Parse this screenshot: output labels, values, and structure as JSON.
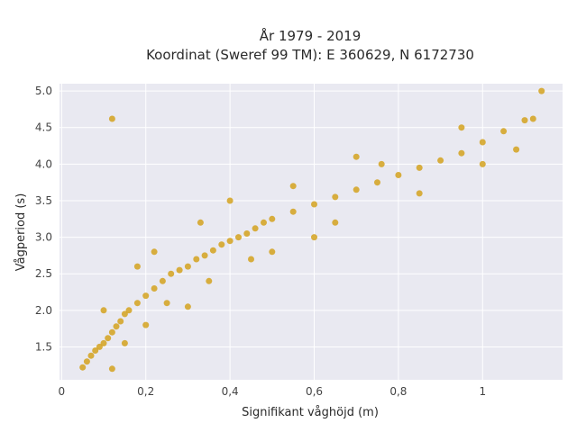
{
  "chart_data": {
    "type": "scatter",
    "title_line1": "År 1979 - 2019",
    "title_line2": "Koordinat (Sweref 99 TM): E 360629, N 6172730",
    "xlabel": "Signifikant våghöjd (m)",
    "ylabel": "Vågperiod (s)",
    "xlim": [
      -0.005,
      1.19
    ],
    "ylim": [
      1.05,
      5.1
    ],
    "x_ticks": [
      0,
      0.2,
      0.4,
      0.6,
      0.8,
      1.0
    ],
    "x_tick_labels": [
      "0",
      "0,2",
      "0,4",
      "0,6",
      "0,8",
      "1"
    ],
    "y_ticks": [
      1.5,
      2.0,
      2.5,
      3.0,
      3.5,
      4.0,
      4.5,
      5.0
    ],
    "y_tick_labels": [
      "1.5",
      "2.0",
      "2.5",
      "3.0",
      "3.5",
      "4.0",
      "4.5",
      "5.0"
    ],
    "grid": true,
    "colors": {
      "point": "#D4A21F",
      "plot_bg": "#E9E9F1",
      "grid": "#FFFFFF"
    },
    "series": [
      {
        "values": [
          [
            0.05,
            1.22
          ],
          [
            0.06,
            1.3
          ],
          [
            0.07,
            1.38
          ],
          [
            0.08,
            1.45
          ],
          [
            0.09,
            1.5
          ],
          [
            0.1,
            1.55
          ],
          [
            0.11,
            1.62
          ],
          [
            0.12,
            1.7
          ],
          [
            0.12,
            1.2
          ],
          [
            0.13,
            1.78
          ],
          [
            0.14,
            1.85
          ],
          [
            0.15,
            1.95
          ],
          [
            0.16,
            2.0
          ],
          [
            0.18,
            2.1
          ],
          [
            0.2,
            2.2
          ],
          [
            0.22,
            2.3
          ],
          [
            0.24,
            2.4
          ],
          [
            0.26,
            2.5
          ],
          [
            0.28,
            2.55
          ],
          [
            0.3,
            2.6
          ],
          [
            0.32,
            2.7
          ],
          [
            0.34,
            2.75
          ],
          [
            0.36,
            2.82
          ],
          [
            0.38,
            2.9
          ],
          [
            0.4,
            2.95
          ],
          [
            0.42,
            3.0
          ],
          [
            0.44,
            3.05
          ],
          [
            0.46,
            3.12
          ],
          [
            0.48,
            3.2
          ],
          [
            0.5,
            3.25
          ],
          [
            0.55,
            3.35
          ],
          [
            0.6,
            3.45
          ],
          [
            0.65,
            3.55
          ],
          [
            0.7,
            3.65
          ],
          [
            0.75,
            3.75
          ],
          [
            0.8,
            3.85
          ],
          [
            0.85,
            3.95
          ],
          [
            0.9,
            4.05
          ],
          [
            0.95,
            4.15
          ],
          [
            1.0,
            4.3
          ],
          [
            1.05,
            4.45
          ],
          [
            1.1,
            4.6
          ],
          [
            1.12,
            4.62
          ],
          [
            1.14,
            5.0
          ],
          [
            0.12,
            4.62
          ],
          [
            0.76,
            4.0
          ],
          [
            0.3,
            2.05
          ],
          [
            0.2,
            1.8
          ],
          [
            0.18,
            2.6
          ],
          [
            0.5,
            2.8
          ],
          [
            0.4,
            3.5
          ],
          [
            0.6,
            3.0
          ],
          [
            0.15,
            1.55
          ],
          [
            0.1,
            2.0
          ],
          [
            0.25,
            2.1
          ],
          [
            0.35,
            2.4
          ],
          [
            0.45,
            2.7
          ],
          [
            0.65,
            3.2
          ],
          [
            0.85,
            3.6
          ],
          [
            1.0,
            4.0
          ],
          [
            0.95,
            4.5
          ],
          [
            1.08,
            4.2
          ],
          [
            0.7,
            4.1
          ],
          [
            0.55,
            3.7
          ],
          [
            0.33,
            3.2
          ],
          [
            0.22,
            2.8
          ]
        ]
      }
    ]
  }
}
